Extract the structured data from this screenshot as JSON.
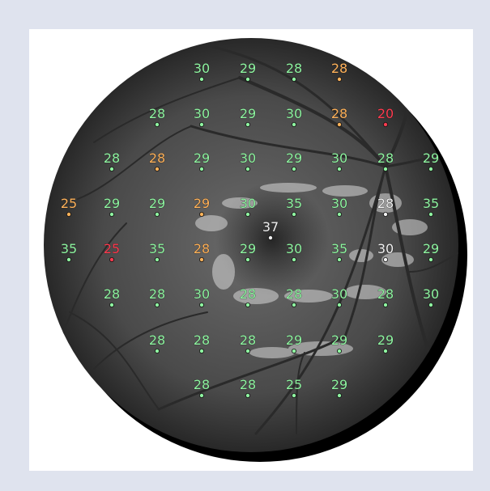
{
  "figure": {
    "background_color": "#dfe3ee",
    "frame_color": "#ffffff",
    "fundus_colors": {
      "dark": "#1c1c1c",
      "mid": "#4a4a4a",
      "light": "#6b6b6b",
      "vessel": "#2a2a2a",
      "exudate": "#d9d9d9"
    },
    "status_colors": {
      "normal": "#8ff5a1",
      "borderline": "#ffb25a",
      "abnormal": "#ff3b4f",
      "neutral": "#f2f2f2"
    },
    "fovea_value": "37",
    "grid": [
      {
        "row": 1,
        "values": [
          "30",
          "29",
          "28",
          "28"
        ],
        "status": [
          "normal",
          "normal",
          "normal",
          "borderline"
        ]
      },
      {
        "row": 2,
        "values": [
          "28",
          "30",
          "29",
          "30",
          "28",
          "20"
        ],
        "status": [
          "normal",
          "normal",
          "normal",
          "normal",
          "borderline",
          "abnormal"
        ]
      },
      {
        "row": 3,
        "values": [
          "28",
          "28",
          "29",
          "30",
          "29",
          "30",
          "28",
          "29"
        ],
        "status": [
          "normal",
          "borderline",
          "normal",
          "normal",
          "normal",
          "normal",
          "normal",
          "normal"
        ]
      },
      {
        "row": 4,
        "values": [
          "25",
          "29",
          "29",
          "29",
          "30",
          "35",
          "30",
          "28",
          "35"
        ],
        "status": [
          "borderline",
          "normal",
          "normal",
          "borderline",
          "normal",
          "normal",
          "normal",
          "neutral",
          "normal"
        ]
      },
      {
        "row": 5,
        "values": [
          "35",
          "25",
          "35",
          "28",
          "29",
          "30",
          "35",
          "30",
          "29"
        ],
        "status": [
          "normal",
          "abnormal",
          "normal",
          "borderline",
          "normal",
          "normal",
          "normal",
          "neutral",
          "normal"
        ]
      },
      {
        "row": 6,
        "values": [
          "28",
          "28",
          "30",
          "28",
          "28",
          "30",
          "28",
          "30"
        ],
        "status": [
          "normal",
          "normal",
          "normal",
          "normal",
          "normal",
          "normal",
          "normal",
          "normal"
        ]
      },
      {
        "row": 7,
        "values": [
          "28",
          "28",
          "28",
          "29",
          "29",
          "29"
        ],
        "status": [
          "normal",
          "normal",
          "normal",
          "normal",
          "normal",
          "normal"
        ]
      },
      {
        "row": 8,
        "values": [
          "28",
          "28",
          "25",
          "29"
        ],
        "status": [
          "normal",
          "normal",
          "normal",
          "normal"
        ]
      }
    ]
  }
}
